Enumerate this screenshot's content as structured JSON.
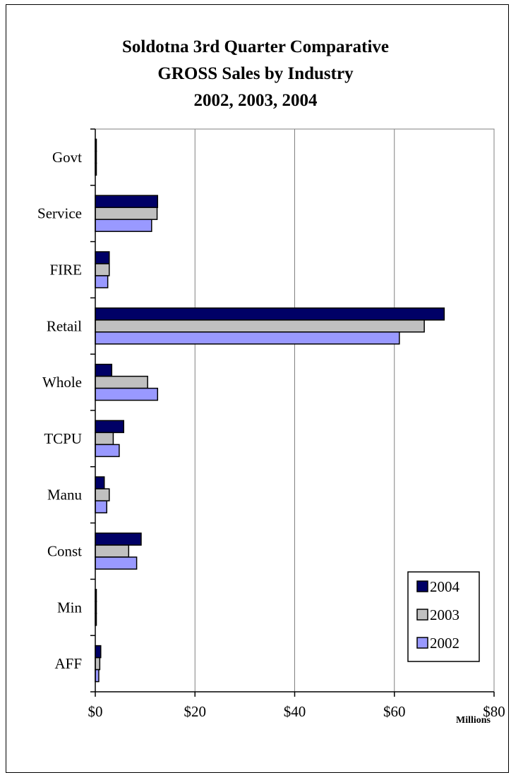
{
  "chart_data": {
    "type": "bar",
    "orientation": "horizontal",
    "title_lines": [
      "Soldotna 3rd Quarter Comparative",
      "GROSS Sales by Industry",
      "2002, 2003, 2004"
    ],
    "categories": [
      "Govt",
      "Service",
      "FIRE",
      "Retail",
      "Whole",
      "TCPU",
      "Manu",
      "Const",
      "Min",
      "AFF"
    ],
    "series": [
      {
        "name": "2004",
        "color": "#000066",
        "values": [
          0.2,
          12.5,
          2.8,
          70.0,
          3.3,
          5.7,
          1.8,
          9.2,
          0.15,
          1.1
        ]
      },
      {
        "name": "2003",
        "color": "#c0c0c0",
        "values": [
          0.1,
          12.4,
          2.8,
          66.0,
          10.5,
          3.6,
          2.8,
          6.7,
          0.1,
          0.9
        ]
      },
      {
        "name": "2002",
        "color": "#9999ff",
        "values": [
          0.05,
          11.3,
          2.5,
          61.0,
          12.5,
          4.8,
          2.3,
          8.3,
          0.1,
          0.7
        ]
      }
    ],
    "xlabel": "Millions",
    "xlim": [
      0,
      80
    ],
    "xticks": [
      0,
      20,
      40,
      60,
      80
    ],
    "xtick_labels": [
      "$0",
      "$20",
      "$40",
      "$60",
      "$80"
    ],
    "grid": "vertical",
    "legend_position": "bottom-right"
  }
}
